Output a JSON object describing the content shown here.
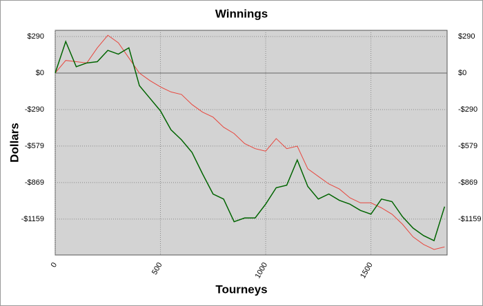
{
  "chart_data": {
    "type": "line",
    "title": "Winnings",
    "x_label": "Tourneys",
    "y_label": "Dollars",
    "x": [
      0,
      50,
      100,
      150,
      200,
      250,
      300,
      350,
      400,
      450,
      500,
      550,
      600,
      650,
      700,
      750,
      800,
      850,
      900,
      950,
      1000,
      1050,
      1100,
      1150,
      1200,
      1250,
      1300,
      1350,
      1400,
      1450,
      1500,
      1550,
      1600,
      1650,
      1700,
      1750,
      1800,
      1850
    ],
    "series": [
      {
        "color": "#e8453c",
        "values": [
          0,
          100,
          90,
          80,
          200,
          300,
          240,
          120,
          0,
          -60,
          -110,
          -150,
          -170,
          -250,
          -310,
          -350,
          -430,
          -480,
          -560,
          -600,
          -620,
          -520,
          -600,
          -580,
          -760,
          -820,
          -880,
          -920,
          -990,
          -1030,
          -1030,
          -1070,
          -1120,
          -1200,
          -1300,
          -1360,
          -1400,
          -1380
        ]
      },
      {
        "color": "#006400",
        "values": [
          0,
          250,
          50,
          80,
          90,
          180,
          150,
          200,
          -100,
          -200,
          -300,
          -450,
          -530,
          -630,
          -800,
          -960,
          -1000,
          -1180,
          -1150,
          -1150,
          -1040,
          -910,
          -890,
          -690,
          -900,
          -1000,
          -960,
          -1010,
          -1040,
          -1090,
          -1120,
          -1000,
          -1020,
          -1140,
          -1230,
          -1290,
          -1330,
          -1060
        ]
      }
    ],
    "xlim": [
      0,
      1862
    ],
    "xticks": [
      0,
      500,
      1000,
      1500
    ],
    "ylim": [
      -1444,
      339
    ],
    "yticks": [
      {
        "value": 290,
        "label": "$290"
      },
      {
        "value": 0,
        "label": "$0"
      },
      {
        "value": -290,
        "label": "-$290"
      },
      {
        "value": -579,
        "label": "-$579"
      },
      {
        "value": -869,
        "label": "-$869"
      },
      {
        "value": -1159,
        "label": "-$1159"
      }
    ],
    "grid": true
  }
}
